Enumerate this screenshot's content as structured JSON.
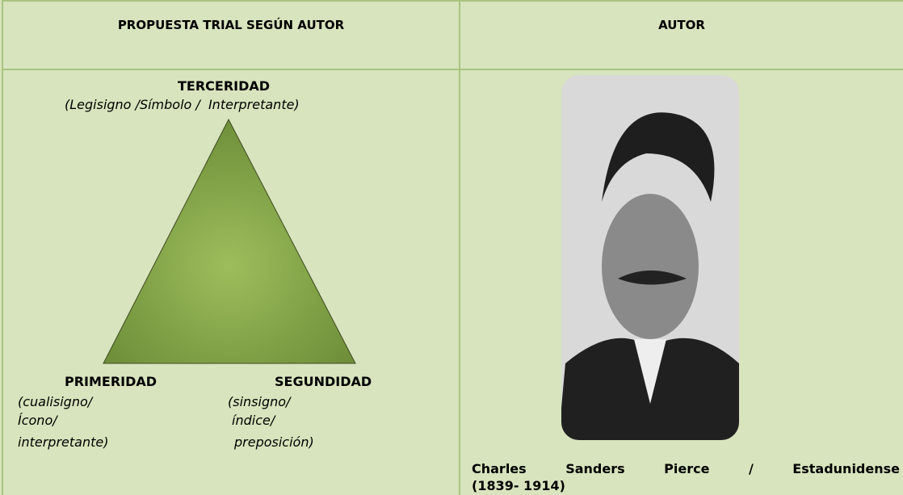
{
  "table": {
    "headers": [
      "PROPUESTA TRIAL SEGÚN AUTOR",
      "AUTOR"
    ]
  },
  "diagram": {
    "top": {
      "title": "TERCERIDAD",
      "subtitle": "(Legisigno /Símbolo /  Interpretante)"
    },
    "left": {
      "title": "PRIMERIDAD",
      "lines": [
        "(cualisigno/",
        "Ícono/",
        "interpretante)"
      ]
    },
    "right": {
      "title": "SEGUNDIDAD",
      "lines": [
        "(sinsigno/",
        "índice/",
        "preposición)"
      ]
    }
  },
  "caption": {
    "lines": [
      "Charles Sanders Pierce / Estadunidense",
      "(1839- 1914)"
    ]
  }
}
